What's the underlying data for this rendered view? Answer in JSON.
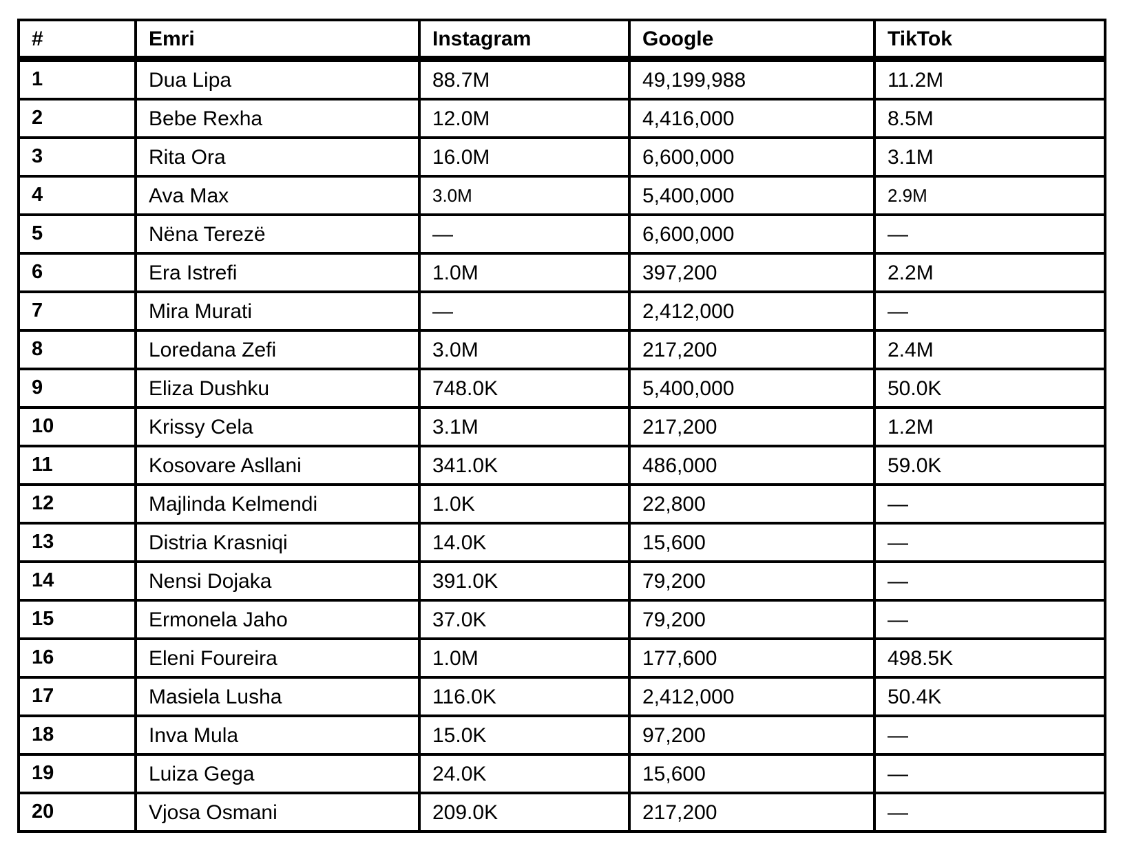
{
  "table": {
    "columns": [
      {
        "key": "rank",
        "label": "#"
      },
      {
        "key": "name",
        "label": "Emri"
      },
      {
        "key": "instagram",
        "label": "Instagram"
      },
      {
        "key": "google",
        "label": "Google"
      },
      {
        "key": "tiktok",
        "label": "TikTok"
      }
    ],
    "missing_value_symbol": "—",
    "colors": {
      "border": "#000000",
      "text": "#000000",
      "background": "#ffffff"
    },
    "rows": [
      {
        "rank": "1",
        "name": "Dua Lipa",
        "instagram": "88.7M",
        "google": "49,199,988",
        "tiktok": "11.2M"
      },
      {
        "rank": "2",
        "name": "Bebe Rexha",
        "instagram": "12.0M",
        "google": "4,416,000",
        "tiktok": "8.5M"
      },
      {
        "rank": "3",
        "name": "Rita Ora",
        "instagram": "16.0M",
        "google": "6,600,000",
        "tiktok": "3.1M"
      },
      {
        "rank": "4",
        "name": "Ava Max",
        "instagram": "3.0M",
        "google": "5,400,000",
        "tiktok": "2.9M"
      },
      {
        "rank": "5",
        "name": "Nëna Terezë",
        "instagram": "—",
        "google": "6,600,000",
        "tiktok": "—"
      },
      {
        "rank": "6",
        "name": "Era Istrefi",
        "instagram": "1.0M",
        "google": "397,200",
        "tiktok": "2.2M"
      },
      {
        "rank": "7",
        "name": "Mira Murati",
        "instagram": "—",
        "google": "2,412,000",
        "tiktok": "—"
      },
      {
        "rank": "8",
        "name": "Loredana Zefi",
        "instagram": "3.0M",
        "google": "217,200",
        "tiktok": "2.4M"
      },
      {
        "rank": "9",
        "name": "Eliza Dushku",
        "instagram": "748.0K",
        "google": "5,400,000",
        "tiktok": "50.0K"
      },
      {
        "rank": "10",
        "name": "Krissy Cela",
        "instagram": "3.1M",
        "google": "217,200",
        "tiktok": "1.2M"
      },
      {
        "rank": "11",
        "name": "Kosovare Asllani",
        "instagram": "341.0K",
        "google": "486,000",
        "tiktok": "59.0K"
      },
      {
        "rank": "12",
        "name": "Majlinda Kelmendi",
        "instagram": "1.0K",
        "google": "22,800",
        "tiktok": "—"
      },
      {
        "rank": "13",
        "name": "Distria Krasniqi",
        "instagram": "14.0K",
        "google": "15,600",
        "tiktok": "—"
      },
      {
        "rank": "14",
        "name": "Nensi Dojaka",
        "instagram": "391.0K",
        "google": "79,200",
        "tiktok": "—"
      },
      {
        "rank": "15",
        "name": "Ermonela Jaho",
        "instagram": "37.0K",
        "google": "79,200",
        "tiktok": "—"
      },
      {
        "rank": "16",
        "name": "Eleni Foureira",
        "instagram": "1.0M",
        "google": "177,600",
        "tiktok": "498.5K"
      },
      {
        "rank": "17",
        "name": "Masiela Lusha",
        "instagram": "116.0K",
        "google": "2,412,000",
        "tiktok": "50.4K"
      },
      {
        "rank": "18",
        "name": "Inva Mula",
        "instagram": "15.0K",
        "google": "97,200",
        "tiktok": "—"
      },
      {
        "rank": "19",
        "name": "Luiza Gega",
        "instagram": "24.0K",
        "google": "15,600",
        "tiktok": "—"
      },
      {
        "rank": "20",
        "name": "Vjosa Osmani",
        "instagram": "209.0K",
        "google": "217,200",
        "tiktok": "—"
      }
    ]
  }
}
